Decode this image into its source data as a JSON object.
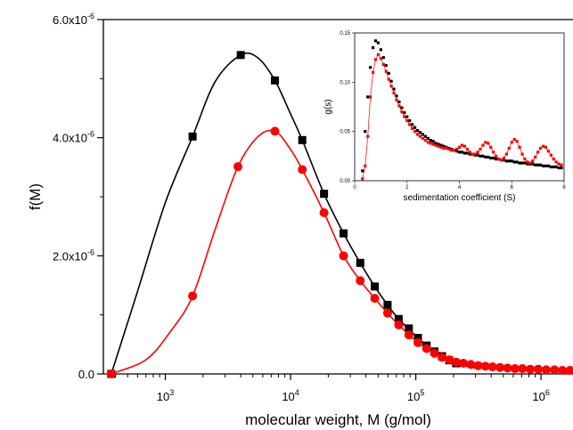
{
  "chart_data": [
    {
      "type": "line",
      "xlabel": "molecular weight, M (g/mol)",
      "ylabel": "f(M)",
      "xscale": "log",
      "xlim": [
        320,
        1800000
      ],
      "ylim": [
        0,
        6e-06
      ],
      "x_ticks": [
        {
          "value": 1000,
          "base": "10",
          "exp": "3"
        },
        {
          "value": 10000,
          "base": "10",
          "exp": "4"
        },
        {
          "value": 100000,
          "base": "10",
          "exp": "5"
        },
        {
          "value": 1000000,
          "base": "10",
          "exp": "6"
        }
      ],
      "y_ticks": [
        {
          "value": 0,
          "mant": "0.0",
          "exp": ""
        },
        {
          "value": 2e-06,
          "mant": "2.0x10",
          "exp": "-6"
        },
        {
          "value": 4e-06,
          "mant": "4.0x10",
          "exp": "-6"
        },
        {
          "value": 6e-06,
          "mant": "6.0x10",
          "exp": "-6"
        }
      ],
      "grid": false,
      "series": [
        {
          "color": "#000000",
          "marker": "square",
          "x": [
            370,
            1650,
            4000,
            7500,
            12400,
            18500,
            26500,
            36000,
            47000,
            59500,
            73000,
            88000,
            104000,
            122000,
            141000,
            162000,
            185000,
            210000
          ],
          "y": [
            0,
            4.02e-06,
            5.4e-06,
            4.97e-06,
            3.96e-06,
            3.05e-06,
            2.38e-06,
            1.88e-06,
            1.48e-06,
            1.17e-06,
            9.3e-07,
            7.7e-07,
            6.1e-07,
            4.8e-07,
            3.8e-07,
            3e-07,
            2.3e-07,
            1.8e-07
          ],
          "curve_x": [
            370,
            600,
            1000,
            1650,
            2500,
            4000,
            5500,
            7500,
            10000,
            12400,
            18500,
            26500,
            36000,
            47000,
            59500,
            73000,
            104000,
            141000,
            210000,
            300000
          ],
          "curve_y": [
            0,
            1.4e-06,
            2.9e-06,
            4.02e-06,
            4.95e-06,
            5.4e-06,
            5.35e-06,
            4.97e-06,
            4.4e-06,
            3.96e-06,
            3.05e-06,
            2.38e-06,
            1.88e-06,
            1.48e-06,
            1.17e-06,
            9.3e-07,
            6.1e-07,
            3.8e-07,
            1.8e-07,
            1e-07
          ]
        },
        {
          "color": "#ff0000",
          "marker": "circle",
          "x": [
            370,
            1650,
            3800,
            7500,
            12400,
            18500,
            26500,
            36000,
            47000,
            59500,
            73000,
            88000,
            104000,
            122000,
            141000,
            162000,
            185000,
            210000,
            240000,
            275000,
            315000,
            360000,
            410000,
            470000,
            540000,
            620000,
            710000,
            820000,
            950000,
            1100000,
            1280000,
            1480000,
            1700000
          ],
          "y": [
            0,
            1.32e-06,
            3.51e-06,
            4.11e-06,
            3.46e-06,
            2.73e-06,
            2e-06,
            1.58e-06,
            1.28e-06,
            1.03e-06,
            8.3e-07,
            6.6e-07,
            5.3e-07,
            4.3e-07,
            3.5e-07,
            2.8e-07,
            2.4e-07,
            2e-07,
            1.8e-07,
            1.6e-07,
            1.4e-07,
            1.3e-07,
            1.2e-07,
            1.1e-07,
            1e-07,
            9e-08,
            9e-08,
            8e-08,
            8e-08,
            7e-08,
            7e-08,
            6e-08,
            6e-08
          ],
          "curve_x": [
            370,
            700,
            1100,
            1650,
            2500,
            3800,
            5500,
            7500,
            10000,
            12400,
            18500,
            26500,
            36000,
            47000,
            59500,
            73000,
            104000,
            141000,
            210000,
            315000,
            470000,
            710000,
            1100000,
            1700000
          ],
          "curve_y": [
            0,
            2.4e-07,
            7.2e-07,
            1.32e-06,
            2.45e-06,
            3.51e-06,
            4.02e-06,
            4.11e-06,
            3.8e-06,
            3.46e-06,
            2.73e-06,
            2e-06,
            1.58e-06,
            1.28e-06,
            1.03e-06,
            8.3e-07,
            5.3e-07,
            3.5e-07,
            2e-07,
            1.4e-07,
            1.1e-07,
            9e-08,
            7e-08,
            6e-08
          ]
        }
      ]
    },
    {
      "type": "scatter",
      "xlabel": "sedimentation coefficient (S)",
      "ylabel": "g(s)",
      "xlim": [
        0,
        8
      ],
      "ylim": [
        0,
        0.15
      ],
      "x_ticks": [
        "0",
        "2",
        "4",
        "6",
        "8"
      ],
      "y_ticks": [
        "0.00",
        "0.05",
        "0.10",
        "0.15"
      ],
      "series": [
        {
          "color": "#000000",
          "marker": "square",
          "x": [
            0.3,
            0.4,
            0.5,
            0.6,
            0.7,
            0.8,
            0.9,
            1.0,
            1.1,
            1.2,
            1.3,
            1.4,
            1.5,
            1.6,
            1.7,
            1.8,
            1.9,
            2.0,
            2.1,
            2.2,
            2.3,
            2.4,
            2.5,
            2.6,
            2.7,
            2.8,
            2.9,
            3.0,
            3.1,
            3.2,
            3.3,
            3.4,
            3.5,
            3.6,
            3.7,
            3.8,
            3.9,
            4.0,
            4.1,
            4.2,
            4.3,
            4.4,
            4.5,
            4.6,
            4.7,
            4.8,
            4.9,
            5.0,
            5.1,
            5.2,
            5.3,
            5.4,
            5.5,
            5.6,
            5.7,
            5.8,
            5.9,
            6.0,
            6.1,
            6.2,
            6.3,
            6.4,
            6.5,
            6.6,
            6.7,
            6.8,
            6.9,
            7.0,
            7.1,
            7.2,
            7.3,
            7.4,
            7.5,
            7.6,
            7.7,
            7.8,
            7.9
          ],
          "y": [
            0.01,
            0.05,
            0.085,
            0.115,
            0.135,
            0.142,
            0.14,
            0.133,
            0.125,
            0.117,
            0.109,
            0.101,
            0.093,
            0.086,
            0.08,
            0.074,
            0.069,
            0.065,
            0.061,
            0.057,
            0.054,
            0.051,
            0.049,
            0.047,
            0.045,
            0.043,
            0.041,
            0.04,
            0.038,
            0.037,
            0.036,
            0.035,
            0.034,
            0.033,
            0.032,
            0.031,
            0.03,
            0.029,
            0.029,
            0.028,
            0.028,
            0.027,
            0.027,
            0.026,
            0.026,
            0.025,
            0.025,
            0.024,
            0.024,
            0.023,
            0.023,
            0.022,
            0.022,
            0.021,
            0.021,
            0.02,
            0.02,
            0.02,
            0.019,
            0.019,
            0.018,
            0.018,
            0.018,
            0.017,
            0.017,
            0.017,
            0.016,
            0.016,
            0.016,
            0.015,
            0.015,
            0.015,
            0.014,
            0.014,
            0.014,
            0.013,
            0.013
          ]
        },
        {
          "color": "#ff0000",
          "marker": "square",
          "x": [
            0.3,
            0.4,
            0.5,
            0.6,
            0.7,
            0.8,
            0.9,
            1.0,
            1.1,
            1.2,
            1.3,
            1.4,
            1.5,
            1.6,
            1.7,
            1.8,
            1.9,
            2.0,
            2.1,
            2.2,
            2.3,
            2.4,
            2.5,
            2.6,
            2.7,
            2.8,
            2.9,
            3.0,
            3.1,
            3.2,
            3.3,
            3.4,
            3.5,
            3.6,
            3.7,
            3.8,
            3.9,
            4.0,
            4.1,
            4.2,
            4.3,
            4.4,
            4.5,
            4.6,
            4.7,
            4.8,
            4.9,
            5.0,
            5.1,
            5.2,
            5.3,
            5.4,
            5.5,
            5.6,
            5.7,
            5.8,
            5.9,
            6.0,
            6.1,
            6.2,
            6.3,
            6.4,
            6.5,
            6.6,
            6.7,
            6.8,
            6.9,
            7.0,
            7.1,
            7.2,
            7.3,
            7.4,
            7.5,
            7.6,
            7.7,
            7.8,
            7.9
          ],
          "y": [
            0.002,
            0.015,
            0.045,
            0.085,
            0.11,
            0.123,
            0.128,
            0.124,
            0.118,
            0.111,
            0.103,
            0.096,
            0.089,
            0.082,
            0.076,
            0.07,
            0.065,
            0.061,
            0.057,
            0.053,
            0.05,
            0.047,
            0.045,
            0.043,
            0.041,
            0.039,
            0.038,
            0.037,
            0.036,
            0.035,
            0.034,
            0.033,
            0.033,
            0.032,
            0.031,
            0.031,
            0.032,
            0.034,
            0.036,
            0.035,
            0.032,
            0.029,
            0.027,
            0.027,
            0.029,
            0.032,
            0.036,
            0.039,
            0.038,
            0.034,
            0.029,
            0.025,
            0.022,
            0.021,
            0.023,
            0.027,
            0.033,
            0.039,
            0.042,
            0.04,
            0.034,
            0.027,
            0.022,
            0.019,
            0.018,
            0.02,
            0.024,
            0.029,
            0.033,
            0.035,
            0.034,
            0.03,
            0.026,
            0.022,
            0.019,
            0.017,
            0.016
          ]
        }
      ]
    }
  ]
}
